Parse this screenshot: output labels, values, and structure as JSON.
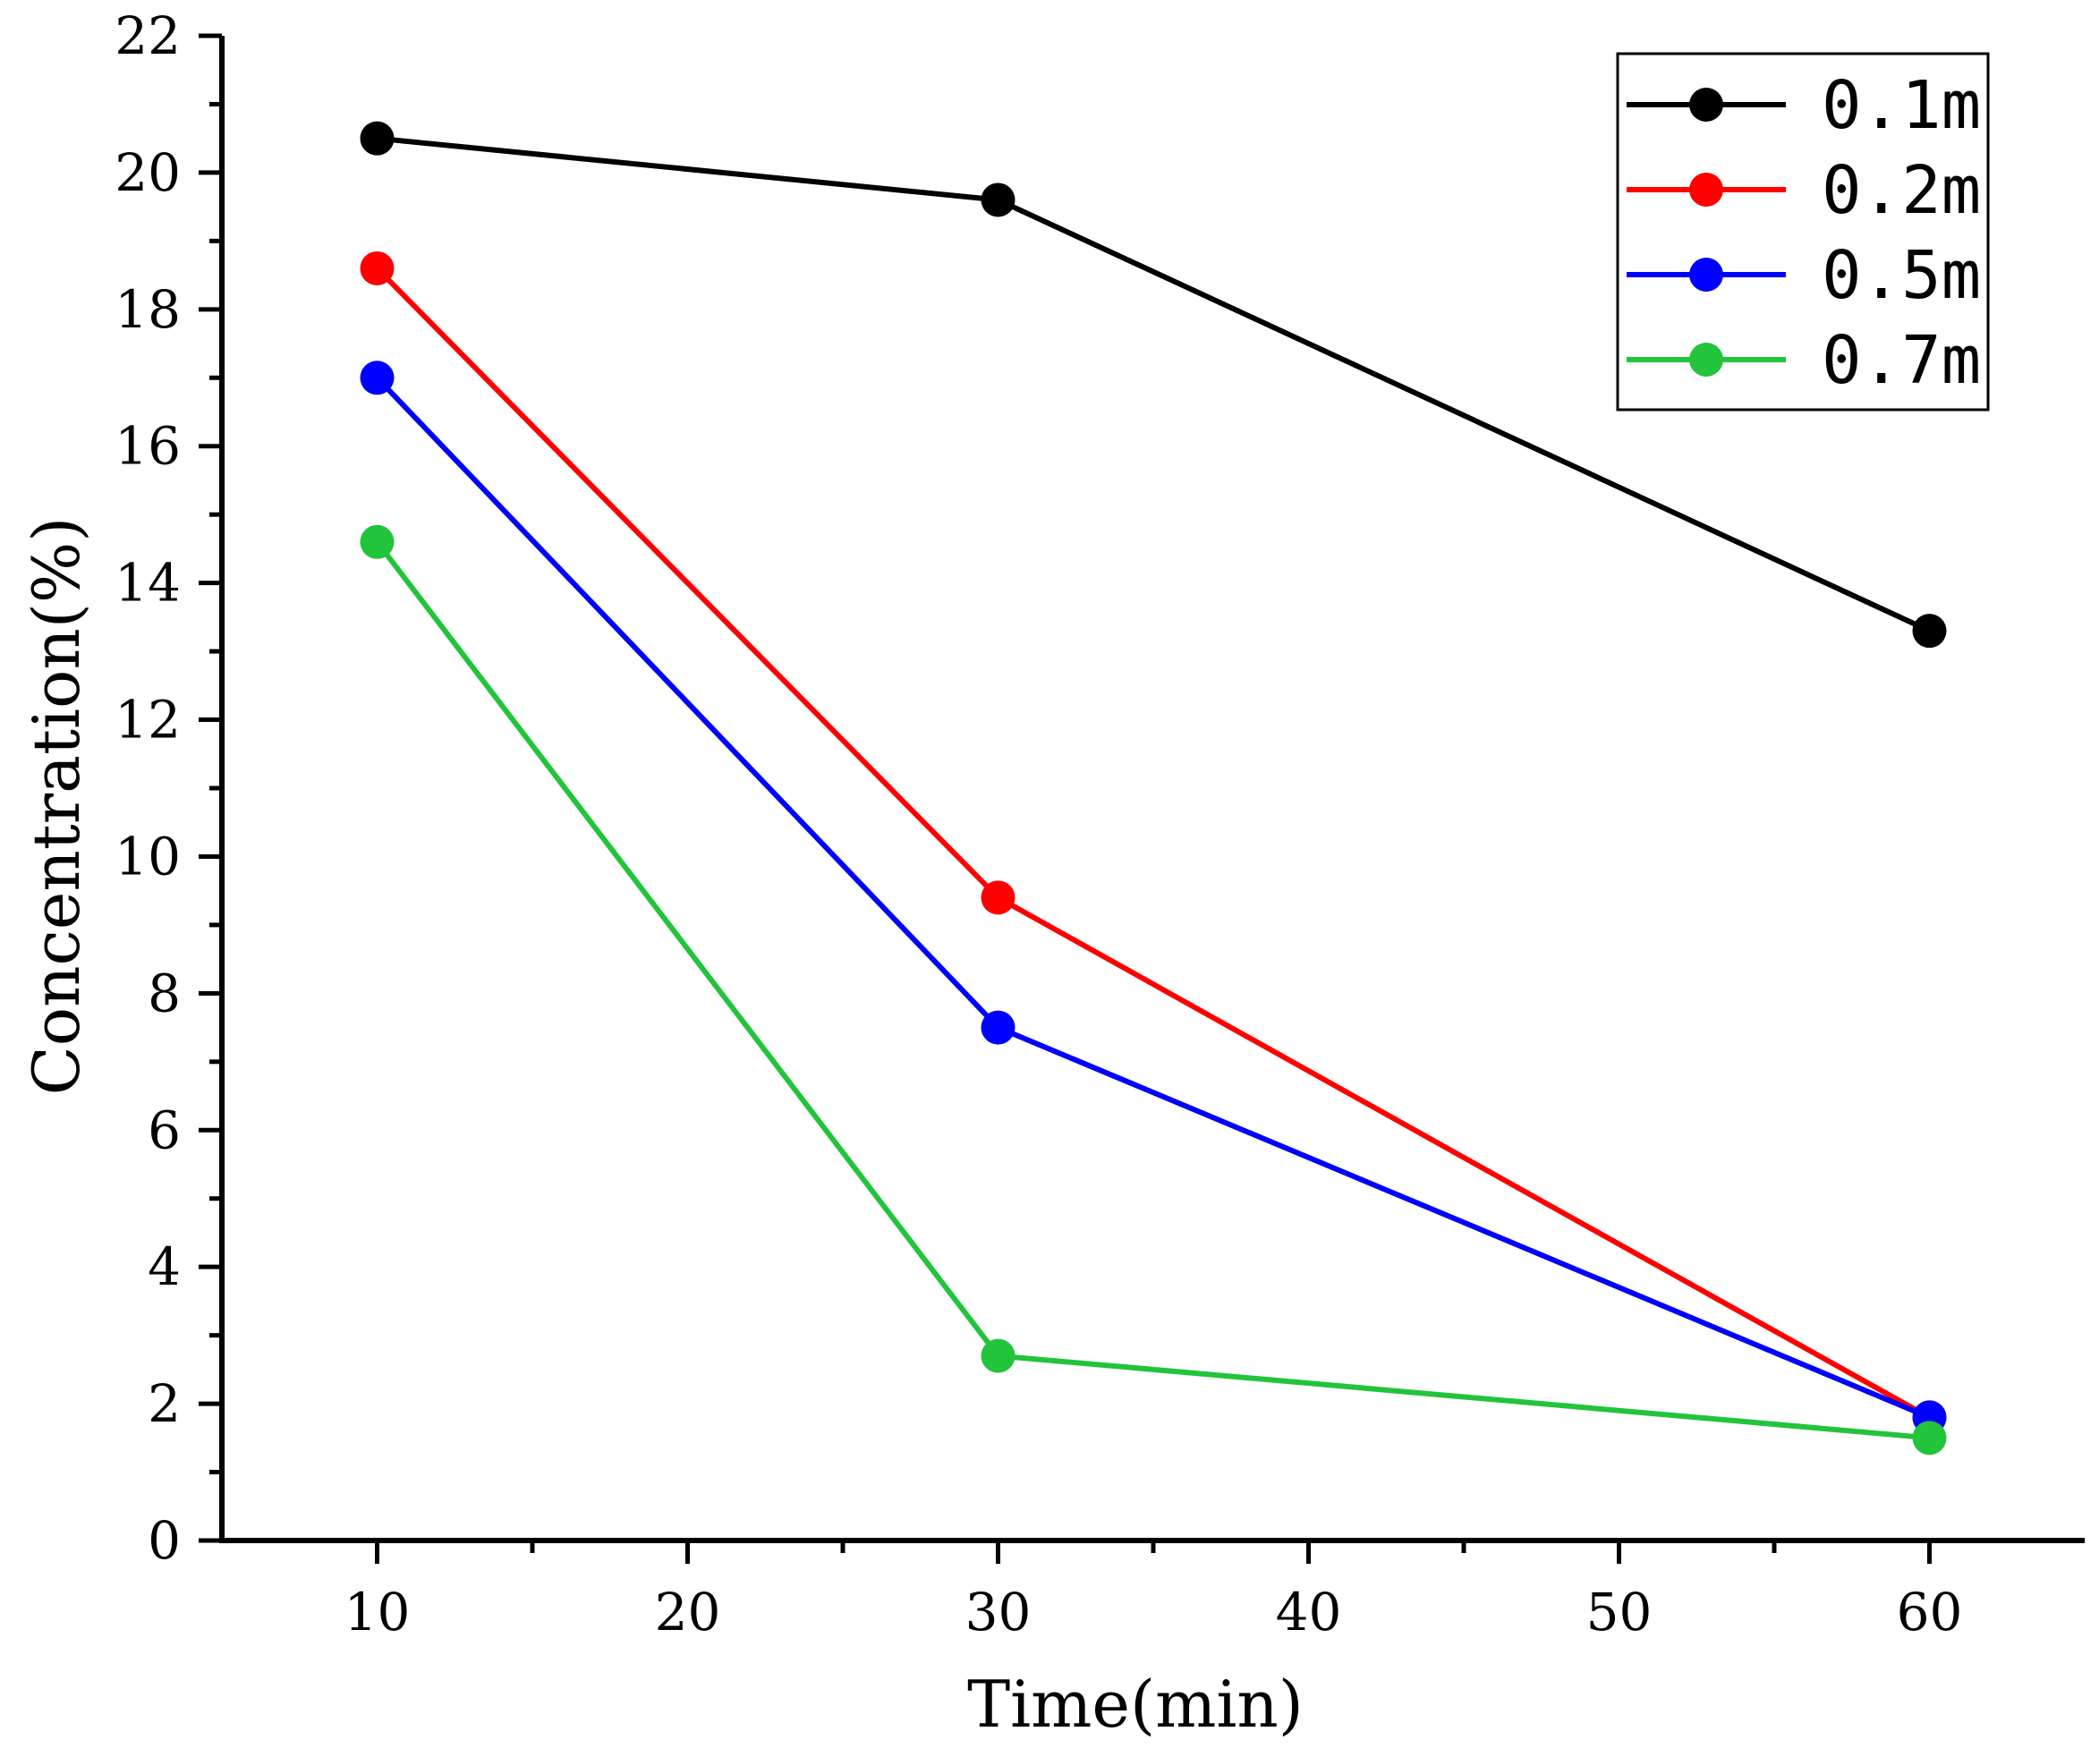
{
  "chart_data": {
    "type": "line",
    "title": "",
    "xlabel": "Time(min)",
    "ylabel": "Concentration(%)",
    "xlim": [
      5,
      65
    ],
    "ylim": [
      0,
      22
    ],
    "x_ticks": [
      10,
      20,
      30,
      40,
      50,
      60
    ],
    "x_tick_labels": [
      "10",
      "20",
      "30",
      "40",
      "50",
      "60"
    ],
    "y_ticks": [
      0,
      2,
      4,
      6,
      8,
      10,
      12,
      14,
      16,
      18,
      20,
      22
    ],
    "y_tick_labels": [
      "0",
      "2",
      "4",
      "6",
      "8",
      "10",
      "12",
      "14",
      "16",
      "18",
      "20",
      "22"
    ],
    "grid": false,
    "legend_position": "top-right",
    "x": [
      10,
      30,
      60
    ],
    "series": [
      {
        "name": "0.1m",
        "color": "#000000",
        "values": [
          20.5,
          19.6,
          13.3
        ]
      },
      {
        "name": "0.2m",
        "color": "#ff0000",
        "values": [
          18.6,
          9.4,
          1.8
        ]
      },
      {
        "name": "0.5m",
        "color": "#0000ff",
        "values": [
          17.0,
          7.5,
          1.8
        ]
      },
      {
        "name": "0.7m",
        "color": "#22c43c",
        "values": [
          14.6,
          2.7,
          1.5
        ]
      }
    ]
  }
}
